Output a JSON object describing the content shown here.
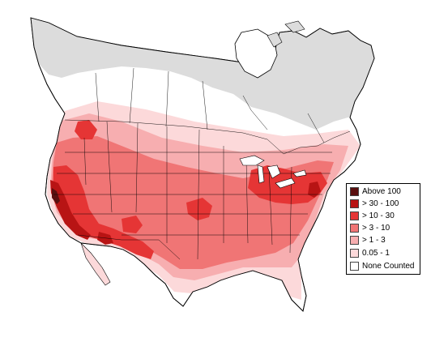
{
  "legend": {
    "items": [
      {
        "label": "Above 100",
        "color": "#5a0f0f"
      },
      {
        "label": "> 30 - 100",
        "color": "#b81414"
      },
      {
        "label": "> 10 - 30",
        "color": "#e53535"
      },
      {
        "label": "> 3 - 10",
        "color": "#f07575"
      },
      {
        "label": "> 1 - 3",
        "color": "#f7aeb0"
      },
      {
        "label": "0.05 - 1",
        "color": "#fcd9da"
      },
      {
        "label": "None Counted",
        "color": "#ffffff"
      }
    ]
  },
  "map": {
    "land_color": "#ffffff",
    "not_surveyed_color": "#dcdcdc",
    "boundary_color": "#000000"
  }
}
